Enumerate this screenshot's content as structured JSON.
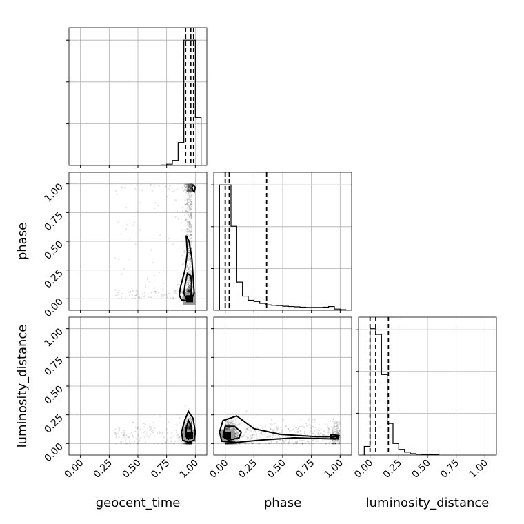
{
  "chart_data": {
    "type": "corner",
    "parameters": [
      "geocent_time",
      "phase",
      "luminosity_distance"
    ],
    "ticks": [
      0.0,
      0.25,
      0.5,
      0.75,
      1.0
    ],
    "tick_labels": [
      "0.00",
      "0.25",
      "0.50",
      "0.75",
      "1.00"
    ],
    "range": [
      -0.1,
      1.1
    ],
    "grid": true,
    "marginals": [
      {
        "parameter": "geocent_time",
        "bin_edges": [
          0.7,
          0.75,
          0.8,
          0.85,
          0.9,
          0.95,
          1.0,
          1.05
        ],
        "counts": [
          1,
          3,
          12,
          55,
          300,
          300,
          115
        ],
        "ymax": 330,
        "quantiles": [
          0.915,
          0.96,
          0.985
        ]
      },
      {
        "parameter": "phase",
        "bin_edges": [
          -0.05,
          0.0,
          0.05,
          0.1,
          0.15,
          0.2,
          0.25,
          0.3,
          0.35,
          0.4,
          0.45,
          0.5,
          0.55,
          0.6,
          0.65,
          0.7,
          0.75,
          0.8,
          0.85,
          0.9,
          0.95,
          1.0,
          1.05
        ],
        "counts": [
          400,
          400,
          268,
          90,
          45,
          32,
          28,
          22,
          17,
          16,
          15,
          13,
          12,
          11,
          10,
          9,
          9,
          9,
          10,
          12,
          4,
          2
        ],
        "ymax": 440,
        "quantiles": [
          0.0,
          0.035,
          0.36
        ]
      },
      {
        "parameter": "luminosity_distance",
        "bin_edges": [
          -0.05,
          0.0,
          0.05,
          0.1,
          0.15,
          0.2,
          0.25,
          0.3,
          0.35,
          0.4,
          0.45,
          0.5,
          0.55,
          0.6
        ],
        "counts": [
          30,
          440,
          420,
          280,
          110,
          40,
          20,
          10,
          5,
          3,
          2,
          1,
          1
        ],
        "ymax": 480,
        "quantiles": [
          0.0,
          0.05,
          0.16
        ]
      }
    ],
    "scatter_panels": [
      {
        "x": "geocent_time",
        "y": "phase",
        "density_peak": [
          0.95,
          0.0
        ],
        "contours": [
          [
            [
              0.92,
              0.55
            ],
            [
              0.945,
              0.5
            ],
            [
              0.97,
              0.35
            ],
            [
              0.98,
              0.2
            ],
            [
              0.99,
              0.05
            ],
            [
              0.96,
              -0.02
            ],
            [
              0.88,
              -0.01
            ],
            [
              0.86,
              0.03
            ],
            [
              0.87,
              0.1
            ],
            [
              0.91,
              0.25
            ],
            [
              0.93,
              0.4
            ]
          ],
          [
            [
              0.93,
              0.22
            ],
            [
              0.96,
              0.2
            ],
            [
              0.97,
              0.1
            ],
            [
              0.96,
              0.02
            ],
            [
              0.92,
              0.0
            ],
            [
              0.9,
              0.05
            ],
            [
              0.91,
              0.12
            ]
          ],
          [
            [
              0.98,
              0.99
            ],
            [
              1.0,
              0.97
            ],
            [
              0.99,
              0.93
            ],
            [
              0.98,
              0.94
            ],
            [
              0.97,
              0.97
            ]
          ]
        ]
      },
      {
        "x": "geocent_time",
        "y": "luminosity_distance",
        "density_peak": [
          0.95,
          0.07
        ],
        "contours": [
          [
            [
              0.94,
              0.28
            ],
            [
              0.98,
              0.22
            ],
            [
              1.0,
              0.1
            ],
            [
              0.99,
              0.03
            ],
            [
              0.94,
              0.01
            ],
            [
              0.89,
              0.03
            ],
            [
              0.88,
              0.1
            ],
            [
              0.91,
              0.21
            ]
          ],
          [
            [
              0.94,
              0.2
            ],
            [
              0.97,
              0.14
            ],
            [
              0.96,
              0.06
            ],
            [
              0.94,
              0.04
            ],
            [
              0.92,
              0.06
            ],
            [
              0.92,
              0.14
            ]
          ]
        ]
      },
      {
        "x": "phase",
        "y": "luminosity_distance",
        "density_peak": [
          0.02,
          0.07
        ],
        "contours": [
          [
            [
              -0.02,
              0.2
            ],
            [
              0.1,
              0.24
            ],
            [
              0.25,
              0.13
            ],
            [
              0.48,
              0.08
            ],
            [
              0.8,
              0.06
            ],
            [
              0.98,
              0.06
            ],
            [
              0.96,
              0.04
            ],
            [
              0.6,
              0.05
            ],
            [
              0.3,
              0.03
            ],
            [
              0.1,
              0.01
            ],
            [
              -0.03,
              0.02
            ],
            [
              -0.05,
              0.1
            ]
          ],
          [
            [
              0.0,
              0.15
            ],
            [
              0.08,
              0.15
            ],
            [
              0.14,
              0.1
            ],
            [
              0.12,
              0.05
            ],
            [
              0.03,
              0.03
            ],
            [
              -0.02,
              0.06
            ]
          ],
          [
            [
              0.92,
              0.08
            ],
            [
              0.99,
              0.07
            ],
            [
              0.98,
              0.04
            ],
            [
              0.92,
              0.05
            ]
          ]
        ]
      }
    ]
  }
}
